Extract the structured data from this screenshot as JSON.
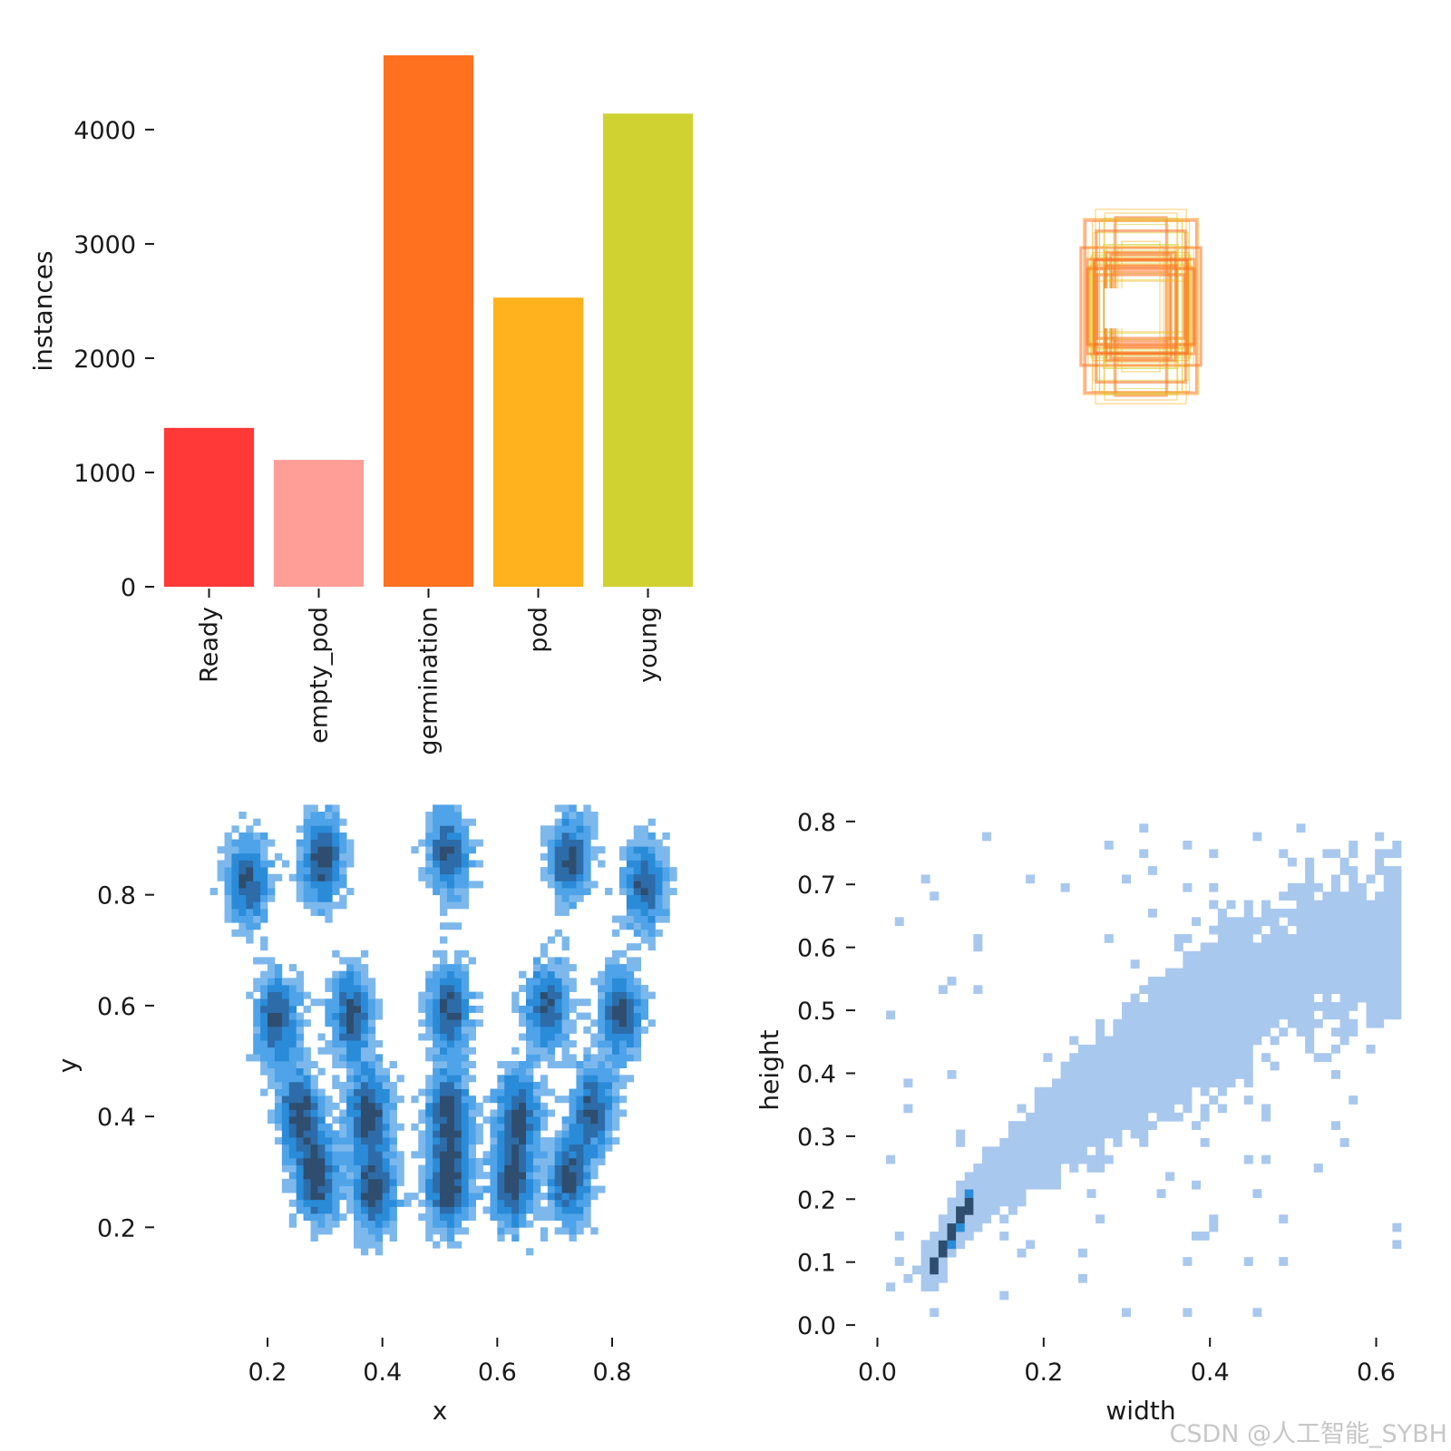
{
  "watermark": "CSDN @人工智能_SYBH",
  "chart_data": [
    {
      "type": "bar",
      "ylabel": "instances",
      "yticks": [
        0,
        1000,
        2000,
        3000,
        4000
      ],
      "ylim": [
        0,
        4650
      ],
      "categories": [
        "Ready",
        "empty_pod",
        "germination",
        "pod",
        "young"
      ],
      "values": [
        1390,
        1110,
        4650,
        2530,
        4140
      ],
      "colors": [
        "#ff3838",
        "#ff9d97",
        "#ff701f",
        "#ffb21d",
        "#cfd231"
      ]
    },
    {
      "type": "box-overlay",
      "colors": [
        "#ff701f",
        "#ffb21d",
        "#cfd231"
      ],
      "box_count": 40
    },
    {
      "type": "heatmap",
      "xlabel": "x",
      "ylabel": "y",
      "xticks": [
        0.2,
        0.4,
        0.6,
        0.8
      ],
      "yticks": [
        0.2,
        0.4,
        0.6,
        0.8
      ],
      "xlim": [
        0.05,
        0.95
      ],
      "ylim": [
        0.05,
        0.95
      ],
      "clusters": [
        {
          "x": 0.16,
          "y": 0.82,
          "intensity": 0.85
        },
        {
          "x": 0.29,
          "y": 0.86,
          "intensity": 0.9
        },
        {
          "x": 0.51,
          "y": 0.87,
          "intensity": 0.8
        },
        {
          "x": 0.72,
          "y": 0.86,
          "intensity": 0.85
        },
        {
          "x": 0.85,
          "y": 0.81,
          "intensity": 0.8
        },
        {
          "x": 0.21,
          "y": 0.57,
          "intensity": 0.85
        },
        {
          "x": 0.34,
          "y": 0.58,
          "intensity": 0.85
        },
        {
          "x": 0.51,
          "y": 0.59,
          "intensity": 0.85
        },
        {
          "x": 0.68,
          "y": 0.59,
          "intensity": 0.8
        },
        {
          "x": 0.81,
          "y": 0.58,
          "intensity": 0.85
        },
        {
          "x": 0.25,
          "y": 0.4,
          "intensity": 0.9
        },
        {
          "x": 0.37,
          "y": 0.4,
          "intensity": 0.9
        },
        {
          "x": 0.51,
          "y": 0.4,
          "intensity": 0.9
        },
        {
          "x": 0.63,
          "y": 0.4,
          "intensity": 0.85
        },
        {
          "x": 0.76,
          "y": 0.41,
          "intensity": 0.8
        },
        {
          "x": 0.28,
          "y": 0.28,
          "intensity": 0.9
        },
        {
          "x": 0.38,
          "y": 0.26,
          "intensity": 0.9
        },
        {
          "x": 0.51,
          "y": 0.27,
          "intensity": 0.95
        },
        {
          "x": 0.62,
          "y": 0.27,
          "intensity": 0.85
        },
        {
          "x": 0.72,
          "y": 0.28,
          "intensity": 0.85
        }
      ]
    },
    {
      "type": "heatmap",
      "xlabel": "width",
      "ylabel": "height",
      "xticks": [
        0.0,
        0.2,
        0.4,
        0.6
      ],
      "yticks": [
        0.0,
        0.1,
        0.2,
        0.3,
        0.4,
        0.5,
        0.6,
        0.7,
        0.8
      ],
      "xlim": [
        -0.03,
        0.63
      ],
      "ylim": [
        -0.02,
        0.83
      ],
      "trend": [
        [
          0.06,
          0.08
        ],
        [
          0.1,
          0.18
        ],
        [
          0.2,
          0.3
        ],
        [
          0.35,
          0.45
        ],
        [
          0.55,
          0.6
        ]
      ]
    }
  ]
}
